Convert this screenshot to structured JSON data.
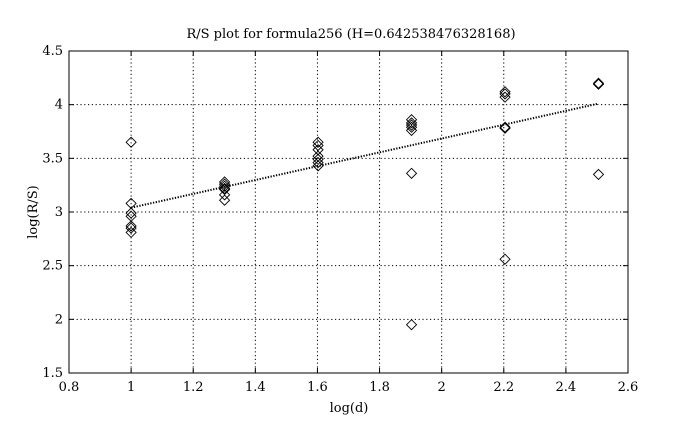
{
  "chart_data": {
    "type": "scatter",
    "title": "R/S plot for formula256 (H=0.642538476328168)",
    "xlabel": "log(d)",
    "ylabel": "log(R/S)",
    "xlim": [
      0.8,
      2.6
    ],
    "ylim": [
      1.5,
      4.5
    ],
    "xticks": [
      0.8,
      1,
      1.2,
      1.4,
      1.6,
      1.8,
      2,
      2.2,
      2.4,
      2.6
    ],
    "xtick_labels": [
      "0.8",
      "1",
      "1.2",
      "1.4",
      "1.6",
      "1.8",
      "2",
      "2.2",
      "2.4",
      "2.6"
    ],
    "yticks": [
      1.5,
      2,
      2.5,
      3,
      3.5,
      4,
      4.5
    ],
    "ytick_labels": [
      "1.5",
      "2",
      "2.5",
      "3",
      "3.5",
      "4",
      "4.5"
    ],
    "grid": true,
    "marker": "diamond",
    "points": [
      {
        "x": 1.0,
        "y": 3.65
      },
      {
        "x": 1.0,
        "y": 3.08
      },
      {
        "x": 1.0,
        "y": 2.99
      },
      {
        "x": 1.0,
        "y": 2.96
      },
      {
        "x": 1.0,
        "y": 2.87
      },
      {
        "x": 1.0,
        "y": 2.85
      },
      {
        "x": 1.0,
        "y": 2.81
      },
      {
        "x": 1.301,
        "y": 3.28
      },
      {
        "x": 1.301,
        "y": 3.26
      },
      {
        "x": 1.301,
        "y": 3.24
      },
      {
        "x": 1.301,
        "y": 3.22
      },
      {
        "x": 1.301,
        "y": 3.21
      },
      {
        "x": 1.301,
        "y": 3.16
      },
      {
        "x": 1.301,
        "y": 3.11
      },
      {
        "x": 1.602,
        "y": 3.65
      },
      {
        "x": 1.602,
        "y": 3.62
      },
      {
        "x": 1.602,
        "y": 3.58
      },
      {
        "x": 1.602,
        "y": 3.52
      },
      {
        "x": 1.602,
        "y": 3.49
      },
      {
        "x": 1.602,
        "y": 3.46
      },
      {
        "x": 1.602,
        "y": 3.43
      },
      {
        "x": 1.903,
        "y": 3.86
      },
      {
        "x": 1.903,
        "y": 3.83
      },
      {
        "x": 1.903,
        "y": 3.81
      },
      {
        "x": 1.903,
        "y": 3.79
      },
      {
        "x": 1.903,
        "y": 3.76
      },
      {
        "x": 1.903,
        "y": 3.36
      },
      {
        "x": 1.903,
        "y": 1.95
      },
      {
        "x": 2.204,
        "y": 4.12
      },
      {
        "x": 2.204,
        "y": 4.1
      },
      {
        "x": 2.204,
        "y": 4.07
      },
      {
        "x": 2.204,
        "y": 3.79
      },
      {
        "x": 2.204,
        "y": 3.78
      },
      {
        "x": 2.204,
        "y": 2.56
      },
      {
        "x": 2.505,
        "y": 4.2
      },
      {
        "x": 2.505,
        "y": 4.19
      },
      {
        "x": 2.505,
        "y": 3.35
      }
    ],
    "fit_line": {
      "style": "dotted",
      "x": [
        1.0,
        2.505
      ],
      "y": [
        3.04,
        4.01
      ]
    }
  }
}
